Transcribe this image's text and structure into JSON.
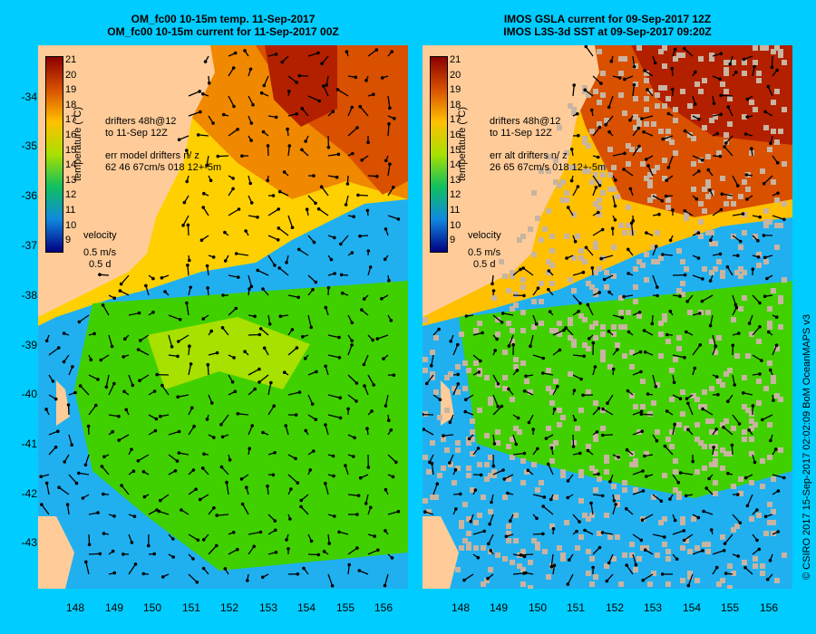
{
  "left": {
    "title1": "OM_fc00 10-15m temp. 11-Sep-2017",
    "title2": "OM_fc00 10-15m current for 11-Sep-2017 00Z",
    "drifters1": "drifters 48h@12",
    "drifters2": "to 11-Sep 12Z",
    "err1": "err model drifters n/ z",
    "err2": "62 46 67cm/s 018 12+-5m"
  },
  "right": {
    "title1": "IMOS GSLA current for 09-Sep-2017 12Z",
    "title2": "IMOS L3S-3d SST at 09-Sep-2017 09:20Z",
    "drifters1": "drifters 48h@12",
    "drifters2": "to 11-Sep 12Z",
    "err1": "err alt drifters n/ z",
    "err2": "26 65 67cm/s 018 12+-5m"
  },
  "colorbar": {
    "label": "temperature (°C)",
    "ticks": [
      "21",
      "20",
      "19",
      "18",
      "17",
      "16",
      "15",
      "14",
      "13",
      "12",
      "11",
      "10",
      "9"
    ],
    "colors": [
      "#8b0000",
      "#b22000",
      "#d85000",
      "#f08800",
      "#ffc000",
      "#e8e800",
      "#a8e000",
      "#40d000",
      "#10c060",
      "#00b0c0",
      "#1088e0",
      "#1040c0",
      "#000080"
    ]
  },
  "velocity": {
    "label": "velocity",
    "speed": "0.5 m/s",
    "time": "0.5 d"
  },
  "axes": {
    "lat_labels": [
      "-34",
      "-35",
      "-36",
      "-37",
      "-38",
      "-39",
      "-40",
      "-41",
      "-42",
      "-43"
    ],
    "lon_labels": [
      "148",
      "149",
      "150",
      "151",
      "152",
      "153",
      "154",
      "155",
      "156"
    ]
  },
  "credit": "© CSIRO 2017   15-Sep-2017 02:02:09 BoM OceanMAPS v3",
  "colors": {
    "land": "#ffcc99",
    "background": "#00ccff",
    "missing": "#c8b4a0",
    "drifter": "#ff00ff"
  }
}
